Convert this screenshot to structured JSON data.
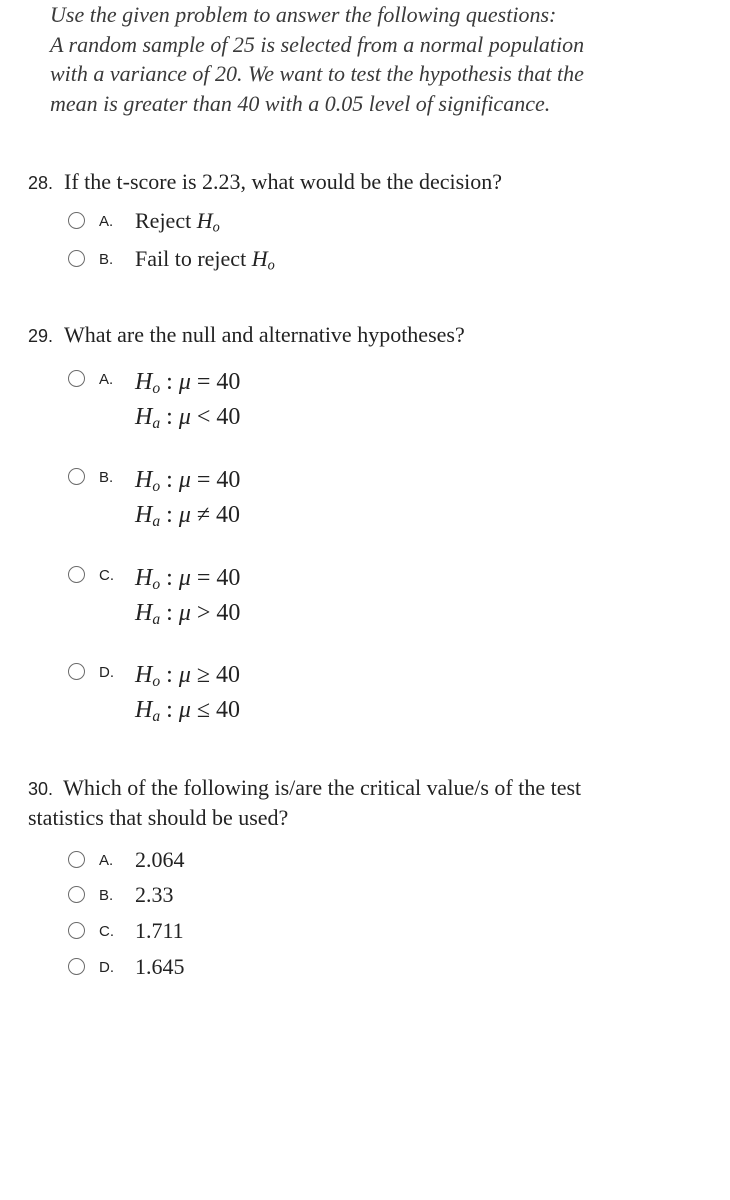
{
  "prompt": {
    "l1": "Use the given problem to answer the following questions:",
    "l2": "A random sample of 25 is selected from a normal population",
    "l3": "with a variance of 20. We want to test the hypothesis that the",
    "l4": "mean is greater than 40 with a 0.05 level of significance."
  },
  "q28": {
    "num": "28.",
    "text": "If the t-score is 2.23, what would be the decision?",
    "options": {
      "A": {
        "letter": "A.",
        "pre": "Reject ",
        "sym": "H",
        "sub": "o"
      },
      "B": {
        "letter": "B.",
        "pre": "Fail to reject ",
        "sym": "H",
        "sub": "o"
      }
    }
  },
  "q29": {
    "num": "29.",
    "text": "What are the null and alternative hypotheses?",
    "options": {
      "A": {
        "letter": "A.",
        "h0_sym": "H",
        "h0_sub": "o",
        "h0_colon": " : ",
        "h0_mu": "μ",
        "h0_rel": " = ",
        "h0_val": "40",
        "ha_sym": "H",
        "ha_sub": "a",
        "ha_colon": " : ",
        "ha_mu": "μ",
        "ha_rel": " < ",
        "ha_val": "40"
      },
      "B": {
        "letter": "B.",
        "h0_sym": "H",
        "h0_sub": "o",
        "h0_colon": " : ",
        "h0_mu": "μ",
        "h0_rel": " = ",
        "h0_val": "40",
        "ha_sym": "H",
        "ha_sub": "a",
        "ha_colon": " : ",
        "ha_mu": "μ",
        "ha_rel": " ≠ ",
        "ha_val": "40"
      },
      "C": {
        "letter": "C.",
        "h0_sym": "H",
        "h0_sub": "o",
        "h0_colon": " : ",
        "h0_mu": "μ",
        "h0_rel": " = ",
        "h0_val": "40",
        "ha_sym": "H",
        "ha_sub": "a",
        "ha_colon": " : ",
        "ha_mu": "μ",
        "ha_rel": " > ",
        "ha_val": "40"
      },
      "D": {
        "letter": "D.",
        "h0_sym": "H",
        "h0_sub": "o",
        "h0_colon": " : ",
        "h0_mu": "μ",
        "h0_rel": " ≥ ",
        "h0_val": "40",
        "ha_sym": "H",
        "ha_sub": "a",
        "ha_colon": " : ",
        "ha_mu": "μ",
        "ha_rel": " ≤ ",
        "ha_val": "40"
      }
    }
  },
  "q30": {
    "num": "30.",
    "text_l1": "Which of the following is/are the critical value/s of the test",
    "text_l2": "statistics that should be used?",
    "options": {
      "A": {
        "letter": "A.",
        "val": "2.064"
      },
      "B": {
        "letter": "B.",
        "val": "2.33"
      },
      "C": {
        "letter": "C.",
        "val": "1.711"
      },
      "D": {
        "letter": "D.",
        "val": "1.645"
      }
    }
  },
  "colors": {
    "text": "#222222",
    "prompt": "#3a3a3a",
    "radio_border": "#6b6b6b",
    "background": "#ffffff"
  }
}
